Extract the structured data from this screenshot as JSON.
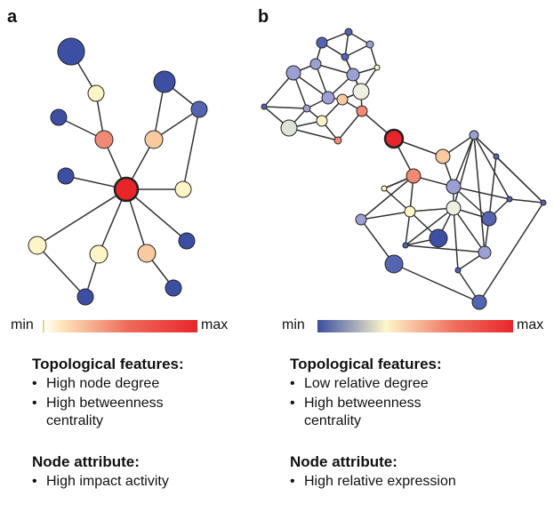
{
  "panels": [
    {
      "label": "a",
      "scale": {
        "min": "min",
        "max": "max"
      },
      "sections": [
        {
          "heading": "Topological features:",
          "items": [
            "High node degree",
            "High betweenness centrality"
          ]
        },
        {
          "heading": "Node attribute:",
          "items": [
            "High impact activity"
          ]
        }
      ]
    },
    {
      "label": "b",
      "scale": {
        "min": "min",
        "max": "max"
      },
      "sections": [
        {
          "heading": "Topological features:",
          "items": [
            "Low relative degree",
            "High betweenness centrality"
          ]
        },
        {
          "heading": "Node attribute:",
          "items": [
            "High relative expression"
          ]
        }
      ]
    }
  ]
}
